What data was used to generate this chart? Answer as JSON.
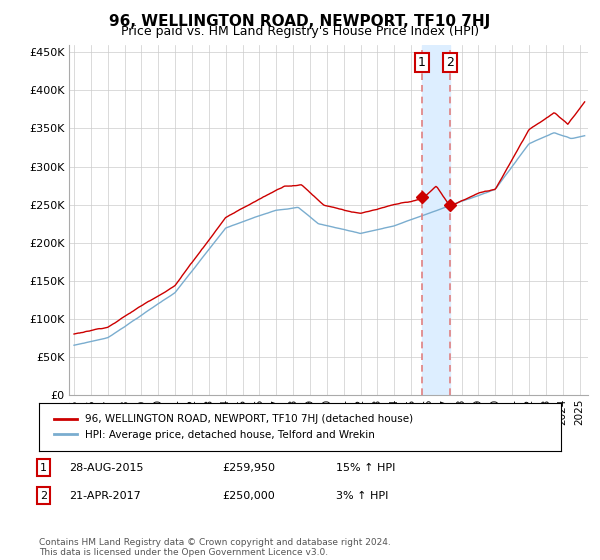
{
  "title": "96, WELLINGTON ROAD, NEWPORT, TF10 7HJ",
  "subtitle": "Price paid vs. HM Land Registry's House Price Index (HPI)",
  "ylabel_ticks": [
    "£0",
    "£50K",
    "£100K",
    "£150K",
    "£200K",
    "£250K",
    "£300K",
    "£350K",
    "£400K",
    "£450K"
  ],
  "ytick_vals": [
    0,
    50000,
    100000,
    150000,
    200000,
    250000,
    300000,
    350000,
    400000,
    450000
  ],
  "ylim": [
    0,
    460000
  ],
  "xlim_start": 1994.7,
  "xlim_end": 2025.5,
  "red_line_color": "#cc0000",
  "blue_line_color": "#7aadcf",
  "marker1_date": 2015.65,
  "marker1_price": 259950,
  "marker1_label": "1",
  "marker2_date": 2017.3,
  "marker2_price": 250000,
  "marker2_label": "2",
  "vline_color": "#e08080",
  "shade_color": "#ddeeff",
  "legend_red_label": "96, WELLINGTON ROAD, NEWPORT, TF10 7HJ (detached house)",
  "legend_blue_label": "HPI: Average price, detached house, Telford and Wrekin",
  "table_rows": [
    {
      "num": "1",
      "date": "28-AUG-2015",
      "price": "£259,950",
      "hpi": "15% ↑ HPI"
    },
    {
      "num": "2",
      "date": "21-APR-2017",
      "price": "£250,000",
      "hpi": "3% ↑ HPI"
    }
  ],
  "footnote": "Contains HM Land Registry data © Crown copyright and database right 2024.\nThis data is licensed under the Open Government Licence v3.0.",
  "bg_color": "#ffffff",
  "grid_color": "#cccccc"
}
